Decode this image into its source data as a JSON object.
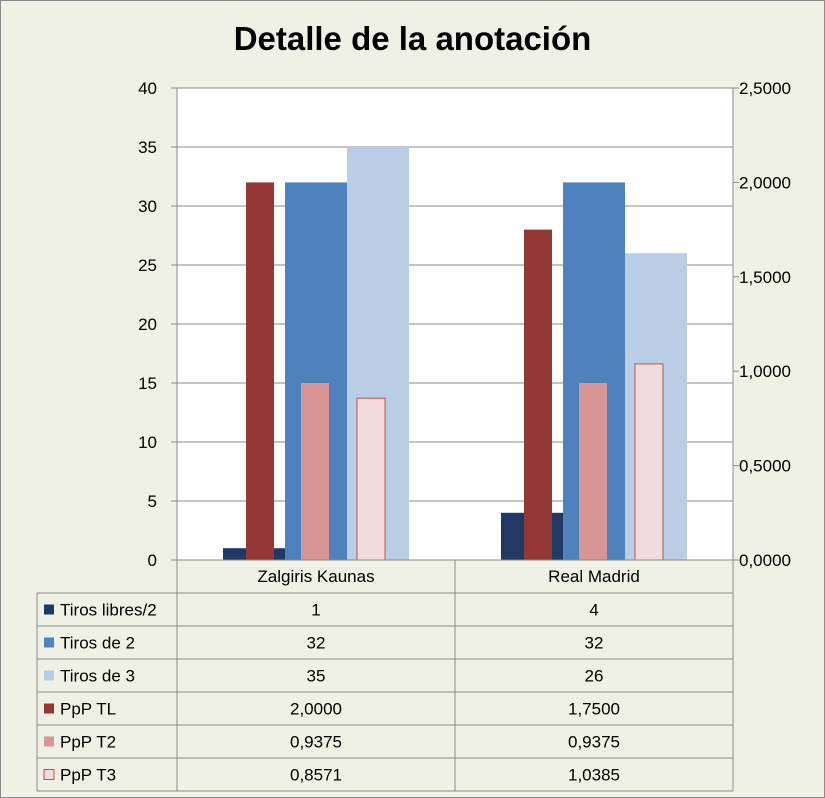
{
  "chart_data": {
    "type": "bar",
    "title": "Detalle de la anotación",
    "categories": [
      "Zalgiris Kaunas",
      "Real Madrid"
    ],
    "y_left": {
      "ylim": [
        0,
        40
      ],
      "ticks": [
        "0",
        "5",
        "10",
        "15",
        "20",
        "25",
        "30",
        "35",
        "40"
      ]
    },
    "y_right": {
      "ylim": [
        0,
        2.5
      ],
      "ticks": [
        "0,0000",
        "0,5000",
        "1,0000",
        "1,5000",
        "2,0000",
        "2,5000"
      ]
    },
    "grid": true,
    "legend": "data-table",
    "series": [
      {
        "name": "Tiros libres/2",
        "axis": "left",
        "values": [
          1,
          4
        ],
        "labels": [
          "1",
          "4"
        ],
        "color": "#1f3864"
      },
      {
        "name": "Tiros de 2",
        "axis": "left",
        "values": [
          32,
          32
        ],
        "labels": [
          "32",
          "32"
        ],
        "color": "#4f81bd"
      },
      {
        "name": "Tiros de 3",
        "axis": "left",
        "values": [
          35,
          26
        ],
        "labels": [
          "35",
          "26"
        ],
        "color": "#b9cde5"
      },
      {
        "name": "PpP TL",
        "axis": "right",
        "values": [
          2.0,
          1.75
        ],
        "labels": [
          "2,0000",
          "1,7500"
        ],
        "color": "#953735"
      },
      {
        "name": "PpP T2",
        "axis": "right",
        "values": [
          0.9375,
          0.9375
        ],
        "labels": [
          "0,9375",
          "0,9375"
        ],
        "color": "#d99594"
      },
      {
        "name": "PpP T3",
        "axis": "right",
        "values": [
          0.8571,
          1.0385
        ],
        "labels": [
          "0,8571",
          "1,0385"
        ],
        "color": "#f2dcdb",
        "outline": "#c0504d"
      }
    ]
  }
}
